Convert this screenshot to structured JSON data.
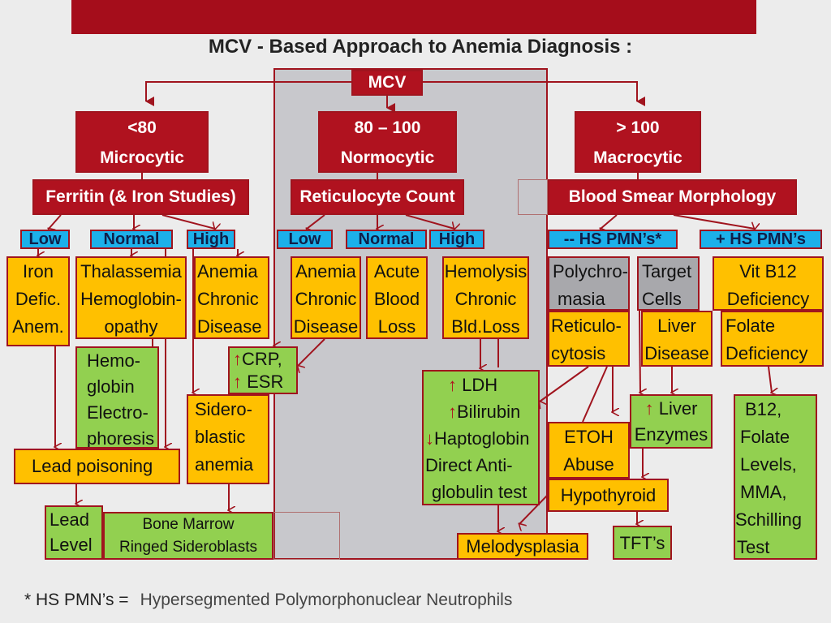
{
  "title": "MCV - Based  Approach  to  Anemia  Diagnosis :",
  "colors": {
    "header_red": "#b0121f",
    "orange": "#ffc000",
    "green": "#92d050",
    "blue": "#1cb0ea",
    "gray": "#a8a8ac",
    "panel": "#c8c8cc"
  },
  "root": "MCV",
  "branches": [
    {
      "range": "<80",
      "name": "Microcytic",
      "test": "Ferritin (& Iron Studies)"
    },
    {
      "range": "80 – 100",
      "name": "Normocytic",
      "test": "Reticulocyte Count"
    },
    {
      "range": "> 100",
      "name": "Macrocytic",
      "test": "Blood Smear Morphology"
    }
  ],
  "levels": [
    "Low",
    "Normal",
    "High",
    "Low",
    "Normal",
    "High",
    "-- HS PMN’s*",
    "+ HS PMN’s"
  ],
  "nodes": {
    "iron": [
      "Iron",
      "Defic.",
      "Anem."
    ],
    "thal": [
      "Thalassemia",
      "Hemoglobin-",
      "opathy"
    ],
    "acd1": [
      "Anemia",
      "Chronic",
      "Disease"
    ],
    "acd2": [
      "Anemia",
      "Chronic",
      "Disease"
    ],
    "acute": [
      "Acute",
      "Blood",
      "Loss"
    ],
    "hemolysis": [
      "Hemolysis",
      "Chronic",
      "Bld.Loss"
    ],
    "polychro": [
      "Polychro-",
      "masia"
    ],
    "target": [
      "Target",
      "Cells"
    ],
    "vitb12": [
      "Vit B12",
      "Deficiency"
    ],
    "reticulo": [
      "Reticulo-",
      "cytosis"
    ],
    "liverdz": [
      "Liver",
      "Disease"
    ],
    "folate": [
      "Folate",
      "Deficiency"
    ],
    "hbep": [
      "Hemo-",
      "globin",
      "Electro-",
      "phoresis"
    ],
    "crp": [
      "CRP,",
      "ESR"
    ],
    "sidero": [
      "Sidero-",
      "blastic",
      "anemia"
    ],
    "lead": "Lead poisoning",
    "leadlevel": [
      "Lead",
      "Level"
    ],
    "bonemarrow": [
      "Bone Marrow",
      "Ringed Sideroblasts"
    ],
    "ldh": [
      "LDH",
      "Bilirubin",
      "Haptoglobin",
      "Direct Anti-",
      "globulin test"
    ],
    "etoh": [
      "ETOH",
      "Abuse"
    ],
    "liverenz": [
      "Liver",
      "Enzymes"
    ],
    "hypothyroid": "Hypothyroid",
    "b12tests": [
      "B12,",
      "Folate",
      "Levels,",
      "MMA,",
      "Schilling",
      "Test"
    ],
    "melo": "Melodysplasia",
    "tft": "TFT’s"
  },
  "glyphs": {
    "up": "↑",
    "down": "↓"
  },
  "footnote": {
    "key": "* HS PMN’s  =",
    "value": "Hypersegmented Polymorphonuclear Neutrophils"
  }
}
